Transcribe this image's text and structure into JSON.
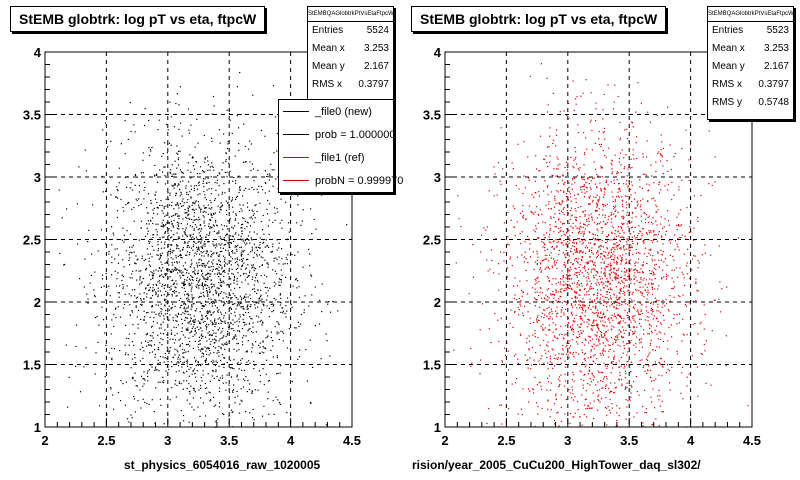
{
  "footnote": "",
  "chart_data": [
    {
      "type": "scatter",
      "title": "StEMB globtrk: log pT vs eta, ftpcW",
      "xlabel": "st_physics_6054016_raw_1020005",
      "ylabel": "",
      "xlim": [
        2,
        4.5
      ],
      "ylim": [
        1,
        4
      ],
      "xticks": [
        "2",
        "2.5",
        "3",
        "3.5",
        "4",
        "4.5"
      ],
      "yticks": [
        "1",
        "1.5",
        "2",
        "2.5",
        "3",
        "3.5",
        "4"
      ],
      "grid": true,
      "marker_color": "#000000",
      "distribution": {
        "points": 2800,
        "x_mean": 3.253,
        "x_rms": 0.3797,
        "y_mean": 2.167,
        "y_rms": 0.5748
      },
      "stats": {
        "header": "StEMBQAGlobtrkPtVsEtaFtpcW",
        "rows": [
          {
            "label": "Entries",
            "value": "5524"
          },
          {
            "label": "Mean x",
            "value": "3.253"
          },
          {
            "label": "Mean y",
            "value": "2.167"
          },
          {
            "label": "RMS x",
            "value": "0.3797"
          }
        ]
      },
      "legend": {
        "placement": "top-right",
        "entries": [
          {
            "label": "_file0 (new)",
            "color": "#000000"
          },
          {
            "label": "prob = 1.000000",
            "color": "#000000"
          },
          {
            "label": "_file1 (ref)",
            "color": "#cc0000"
          },
          {
            "label": "probN = 0.999970",
            "color": "#cc0000"
          }
        ]
      }
    },
    {
      "type": "scatter",
      "title": "StEMB globtrk: log pT vs eta, ftpcW",
      "xlabel": "rision/year_2005_CuCu200_HighTower_daq_sl302/",
      "ylabel": "",
      "xlim": [
        2,
        4.5
      ],
      "ylim": [
        1,
        4
      ],
      "xticks": [
        "2",
        "2.5",
        "3",
        "3.5",
        "4",
        "4.5"
      ],
      "yticks": [
        "1",
        "1.5",
        "2",
        "2.5",
        "3",
        "3.5",
        "4"
      ],
      "grid": true,
      "marker_color": "#dd0000",
      "distribution": {
        "points": 2800,
        "x_mean": 3.253,
        "x_rms": 0.3797,
        "y_mean": 2.167,
        "y_rms": 0.5748
      },
      "stats": {
        "header": "StEMBQAGlobtrkPtVsEtaFtpcW",
        "rows": [
          {
            "label": "Entries",
            "value": "5523"
          },
          {
            "label": "Mean x",
            "value": "3.253"
          },
          {
            "label": "Mean y",
            "value": "2.167"
          },
          {
            "label": "RMS x",
            "value": "0.3797"
          },
          {
            "label": "RMS y",
            "value": "0.5748"
          }
        ]
      }
    }
  ]
}
